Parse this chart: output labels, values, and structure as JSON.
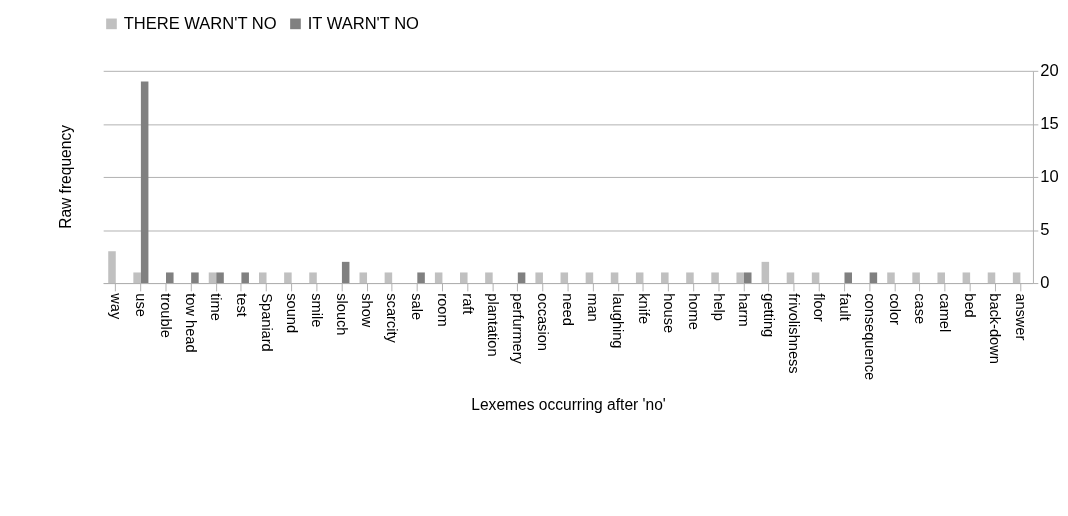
{
  "chart_data": {
    "type": "bar",
    "xlabel": "Lexemes occurring after 'no'",
    "ylabel": "Raw frequency",
    "categories": [
      "way",
      "use",
      "trouble",
      "tow head",
      "time",
      "test",
      "Spaniard",
      "sound",
      "smile",
      "slouch",
      "show",
      "scarcity",
      "sale",
      "room",
      "raft",
      "plantation",
      "perfurmery",
      "occasion",
      "need",
      "man",
      "laughing",
      "knife",
      "house",
      "home",
      "help",
      "harm",
      "getting",
      "frivolishness",
      "floor",
      "fault",
      "consequence",
      "color",
      "case",
      "camel",
      "bed",
      "back-down",
      "answer"
    ],
    "series": [
      {
        "name": "THERE WARN'T NO",
        "color": "#c0c0c0",
        "values": [
          3,
          1,
          0,
          0,
          1,
          0,
          1,
          1,
          1,
          0,
          1,
          1,
          0,
          1,
          1,
          1,
          0,
          1,
          1,
          1,
          1,
          1,
          1,
          1,
          1,
          1,
          2,
          1,
          1,
          0,
          0,
          1,
          1,
          1,
          1,
          1,
          1
        ]
      },
      {
        "name": "IT WARN'T NO",
        "color": "#808080",
        "values": [
          0,
          19,
          1,
          1,
          1,
          1,
          0,
          0,
          0,
          2,
          0,
          0,
          1,
          0,
          0,
          0,
          1,
          0,
          0,
          0,
          0,
          0,
          0,
          0,
          0,
          1,
          0,
          0,
          0,
          1,
          1,
          0,
          0,
          0,
          0,
          0,
          0
        ]
      }
    ],
    "ylim": [
      0,
      20
    ],
    "yticks": [
      0,
      5,
      10,
      15,
      20
    ],
    "grid": "y",
    "legend": "top"
  }
}
